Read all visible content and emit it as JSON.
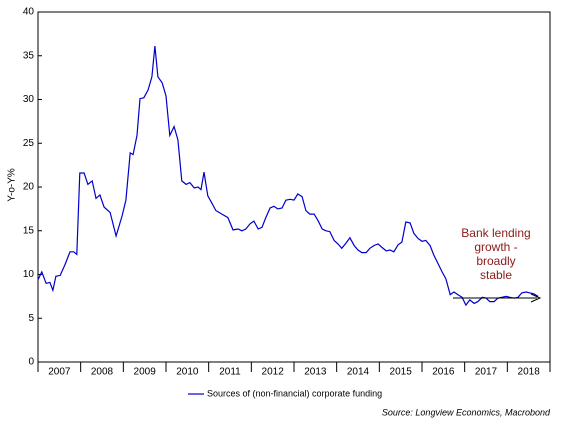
{
  "chart_data": {
    "type": "line",
    "y_label": "Y-o-Y%",
    "annotation": [
      "Bank lending",
      "growth -",
      "broadly",
      "stable"
    ],
    "source": "Source: Longview Economics, Macrobond",
    "xlim": [
      2007,
      2019
    ],
    "xticks": [
      2007,
      2008,
      2009,
      2010,
      2011,
      2012,
      2013,
      2014,
      2015,
      2016,
      2017,
      2018,
      2019
    ],
    "xlabels": [
      {
        "value": 2007.5,
        "label": "2007"
      },
      {
        "value": 2008.5,
        "label": "2008"
      },
      {
        "value": 2009.5,
        "label": "2009"
      },
      {
        "value": 2010.5,
        "label": "2010"
      },
      {
        "value": 2011.5,
        "label": "2011"
      },
      {
        "value": 2012.5,
        "label": "2012"
      },
      {
        "value": 2013.5,
        "label": "2013"
      },
      {
        "value": 2014.5,
        "label": "2014"
      },
      {
        "value": 2015.5,
        "label": "2015"
      },
      {
        "value": 2016.5,
        "label": "2016"
      },
      {
        "value": 2017.5,
        "label": "2017"
      },
      {
        "value": 2018.5,
        "label": "2018"
      }
    ],
    "ylim": [
      0,
      40
    ],
    "yticks": [
      0,
      5,
      10,
      15,
      20,
      25,
      30,
      35,
      40
    ],
    "x": [
      2007.0,
      2007.09,
      2007.19,
      2007.28,
      2007.35,
      2007.42,
      2007.52,
      2007.63,
      2007.75,
      2007.84,
      2007.91,
      2007.98,
      2008.08,
      2008.17,
      2008.27,
      2008.36,
      2008.45,
      2008.55,
      2008.69,
      2008.83,
      2008.97,
      2009.06,
      2009.16,
      2009.23,
      2009.32,
      2009.39,
      2009.48,
      2009.58,
      2009.67,
      2009.74,
      2009.81,
      2009.91,
      2010.0,
      2010.09,
      2010.19,
      2010.28,
      2010.37,
      2010.47,
      2010.56,
      2010.66,
      2010.75,
      2010.82,
      2010.89,
      2010.98,
      2011.08,
      2011.17,
      2011.31,
      2011.45,
      2011.57,
      2011.69,
      2011.78,
      2011.87,
      2011.97,
      2012.06,
      2012.16,
      2012.25,
      2012.34,
      2012.44,
      2012.53,
      2012.62,
      2012.72,
      2012.81,
      2012.91,
      2013.0,
      2013.09,
      2013.19,
      2013.28,
      2013.37,
      2013.47,
      2013.56,
      2013.66,
      2013.75,
      2013.84,
      2013.94,
      2014.03,
      2014.12,
      2014.22,
      2014.31,
      2014.41,
      2014.5,
      2014.59,
      2014.69,
      2014.78,
      2014.87,
      2014.97,
      2015.06,
      2015.16,
      2015.25,
      2015.34,
      2015.44,
      2015.53,
      2015.62,
      2015.72,
      2015.81,
      2015.91,
      2016.0,
      2016.09,
      2016.19,
      2016.28,
      2016.37,
      2016.47,
      2016.56,
      2016.66,
      2016.75,
      2016.84,
      2016.94,
      2017.03,
      2017.12,
      2017.22,
      2017.31,
      2017.41,
      2017.5,
      2017.59,
      2017.69,
      2017.78,
      2017.87,
      2017.97,
      2018.06,
      2018.16,
      2018.25,
      2018.34,
      2018.44,
      2018.53,
      2018.62,
      2018.72
    ],
    "series": [
      {
        "name": "Sources of (non-financial) corporate funding",
        "color": "#0000cc",
        "values": [
          9.4,
          10.3,
          9.0,
          9.1,
          8.2,
          9.8,
          9.9,
          11.1,
          12.6,
          12.6,
          12.3,
          21.6,
          21.6,
          20.3,
          20.7,
          18.7,
          19.1,
          17.7,
          17.1,
          14.4,
          16.7,
          18.5,
          23.9,
          23.7,
          25.9,
          30.1,
          30.2,
          31.1,
          32.6,
          36.1,
          32.6,
          31.9,
          30.4,
          25.9,
          26.9,
          25.4,
          20.7,
          20.3,
          20.5,
          19.9,
          20.0,
          19.7,
          21.7,
          19.0,
          18.1,
          17.3,
          16.9,
          16.5,
          15.1,
          15.2,
          15.0,
          15.2,
          15.8,
          16.1,
          15.2,
          15.4,
          16.5,
          17.6,
          17.8,
          17.5,
          17.6,
          18.5,
          18.6,
          18.5,
          19.2,
          18.9,
          17.3,
          16.9,
          16.9,
          16.2,
          15.2,
          15.0,
          14.9,
          13.9,
          13.5,
          13.0,
          13.6,
          14.2,
          13.3,
          12.8,
          12.5,
          12.5,
          13.0,
          13.3,
          13.5,
          13.1,
          12.7,
          12.8,
          12.6,
          13.4,
          13.7,
          16.0,
          15.9,
          14.7,
          14.1,
          13.8,
          13.9,
          13.3,
          12.2,
          11.3,
          10.3,
          9.5,
          7.7,
          8.0,
          7.7,
          7.4,
          6.5,
          7.1,
          6.7,
          6.9,
          7.4,
          7.3,
          6.9,
          6.9,
          7.3,
          7.4,
          7.5,
          7.4,
          7.3,
          7.4,
          7.9,
          8.0,
          7.9,
          7.8,
          7.5
        ]
      }
    ]
  }
}
